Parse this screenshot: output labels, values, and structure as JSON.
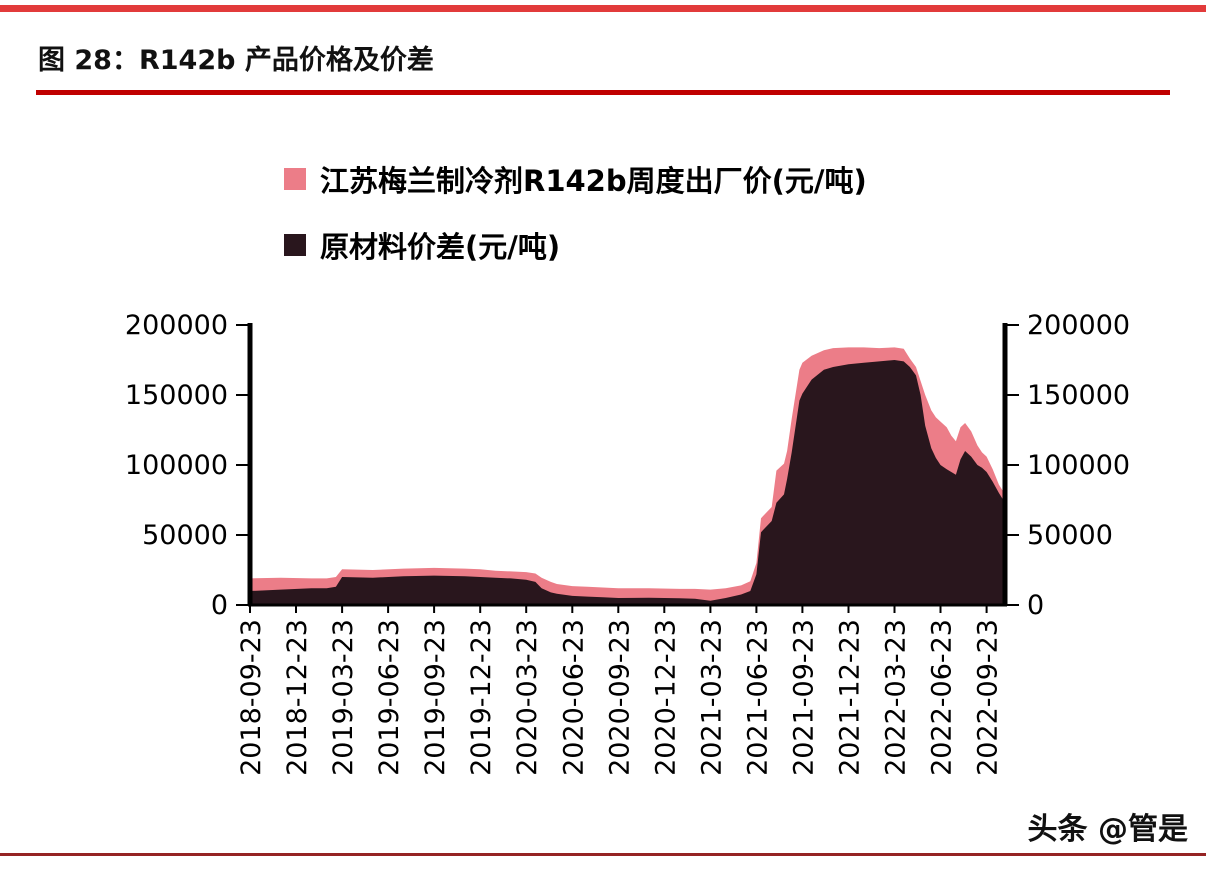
{
  "page": {
    "title": "图 28：R142b 产品价格及价差",
    "watermark": "头条 @管是"
  },
  "colors": {
    "top-bar": "#e23b3b",
    "underline": "#c00000",
    "bottom-line": "#952323",
    "axis": "#000000"
  },
  "legend": [
    {
      "label": "江苏梅兰制冷剂R142b周度出厂价(元/吨)",
      "color": "#ec7d88"
    },
    {
      "label": "原材料价差(元/吨)",
      "color": "#29161d"
    }
  ],
  "chart_data": {
    "type": "area",
    "title": "图 28：R142b 产品价格及价差",
    "xlabel": "",
    "ylabel": "元/吨",
    "x_unit": "months since 2018-09-23",
    "x_max": 49.2,
    "ylim": [
      0,
      200000
    ],
    "yticks": [
      0,
      50000,
      100000,
      150000,
      200000
    ],
    "grid": false,
    "legend_position": "top",
    "x_tick_months": [
      0,
      3,
      6,
      9,
      12,
      15,
      18,
      21,
      24,
      27,
      30,
      33,
      36,
      39,
      42,
      45,
      48
    ],
    "x_tick_labels": [
      "2018-09-23",
      "2018-12-23",
      "2019-03-23",
      "2019-06-23",
      "2019-09-23",
      "2019-12-23",
      "2020-03-23",
      "2020-06-23",
      "2020-09-23",
      "2020-12-23",
      "2021-03-23",
      "2021-06-23",
      "2021-09-23",
      "2021-12-23",
      "2022-03-23",
      "2022-06-23",
      "2022-09-23"
    ],
    "series": [
      {
        "id": "price",
        "name": "江苏梅兰制冷剂R142b周度出厂价(元/吨)",
        "color": "#ec7d88",
        "points": [
          [
            0,
            19000
          ],
          [
            2,
            19500
          ],
          [
            4,
            19000
          ],
          [
            5,
            19000
          ],
          [
            5.6,
            20000
          ],
          [
            6,
            25500
          ],
          [
            8,
            25000
          ],
          [
            10,
            26000
          ],
          [
            12,
            26500
          ],
          [
            14,
            26000
          ],
          [
            15,
            25500
          ],
          [
            16,
            24500
          ],
          [
            17,
            24000
          ],
          [
            18,
            23500
          ],
          [
            18.6,
            22500
          ],
          [
            19,
            19500
          ],
          [
            19.6,
            16500
          ],
          [
            20,
            15000
          ],
          [
            21,
            13500
          ],
          [
            22,
            13000
          ],
          [
            23,
            12500
          ],
          [
            24,
            12000
          ],
          [
            26,
            12000
          ],
          [
            28,
            11500
          ],
          [
            29,
            11500
          ],
          [
            30,
            11000
          ],
          [
            31,
            12000
          ],
          [
            32,
            14000
          ],
          [
            32.6,
            17000
          ],
          [
            33,
            30000
          ],
          [
            33.3,
            62000
          ],
          [
            34,
            70000
          ],
          [
            34.3,
            96000
          ],
          [
            34.8,
            101000
          ],
          [
            35,
            110000
          ],
          [
            35.3,
            133000
          ],
          [
            35.8,
            168000
          ],
          [
            36,
            173000
          ],
          [
            36.6,
            178000
          ],
          [
            37.4,
            182000
          ],
          [
            38,
            183500
          ],
          [
            39,
            184000
          ],
          [
            40,
            184000
          ],
          [
            41,
            183500
          ],
          [
            42,
            184000
          ],
          [
            42.6,
            183000
          ],
          [
            43,
            176000
          ],
          [
            43.4,
            170000
          ],
          [
            43.7,
            160000
          ],
          [
            44,
            150000
          ],
          [
            44.4,
            139000
          ],
          [
            44.7,
            134000
          ],
          [
            45,
            131000
          ],
          [
            45.4,
            127000
          ],
          [
            45.7,
            121000
          ],
          [
            46,
            117000
          ],
          [
            46.3,
            127000
          ],
          [
            46.6,
            130000
          ],
          [
            47,
            124000
          ],
          [
            47.4,
            114000
          ],
          [
            47.7,
            109000
          ],
          [
            48,
            106000
          ],
          [
            48.4,
            97000
          ],
          [
            48.8,
            86000
          ],
          [
            49.2,
            79000
          ]
        ]
      },
      {
        "id": "spread",
        "name": "原材料价差(元/吨)",
        "color": "#29161d",
        "points": [
          [
            0,
            10000
          ],
          [
            2,
            11000
          ],
          [
            4,
            12000
          ],
          [
            5,
            12000
          ],
          [
            5.6,
            13000
          ],
          [
            6,
            20000
          ],
          [
            8,
            19500
          ],
          [
            10,
            20500
          ],
          [
            12,
            21000
          ],
          [
            14,
            20500
          ],
          [
            15,
            20000
          ],
          [
            16,
            19500
          ],
          [
            17,
            19000
          ],
          [
            18,
            18000
          ],
          [
            18.6,
            16500
          ],
          [
            19,
            12000
          ],
          [
            19.6,
            9000
          ],
          [
            20,
            8000
          ],
          [
            21,
            6500
          ],
          [
            22,
            6000
          ],
          [
            23,
            5500
          ],
          [
            24,
            5000
          ],
          [
            26,
            5200
          ],
          [
            28,
            4800
          ],
          [
            29,
            4500
          ],
          [
            30,
            3000
          ],
          [
            31,
            5000
          ],
          [
            32,
            7500
          ],
          [
            32.6,
            10000
          ],
          [
            33,
            22000
          ],
          [
            33.3,
            52000
          ],
          [
            34,
            60000
          ],
          [
            34.3,
            73000
          ],
          [
            34.8,
            79000
          ],
          [
            35,
            90000
          ],
          [
            35.3,
            109000
          ],
          [
            35.8,
            146000
          ],
          [
            36,
            151000
          ],
          [
            36.6,
            161000
          ],
          [
            37.4,
            168000
          ],
          [
            38,
            170000
          ],
          [
            39,
            172000
          ],
          [
            40,
            173000
          ],
          [
            41,
            174000
          ],
          [
            42,
            175000
          ],
          [
            42.6,
            174000
          ],
          [
            43,
            170000
          ],
          [
            43.4,
            164000
          ],
          [
            43.7,
            150000
          ],
          [
            44,
            128000
          ],
          [
            44.4,
            112000
          ],
          [
            44.7,
            105000
          ],
          [
            45,
            100000
          ],
          [
            45.4,
            97000
          ],
          [
            45.7,
            95000
          ],
          [
            46,
            93000
          ],
          [
            46.3,
            104000
          ],
          [
            46.6,
            110000
          ],
          [
            47,
            106000
          ],
          [
            47.4,
            100000
          ],
          [
            47.7,
            98000
          ],
          [
            48,
            95000
          ],
          [
            48.4,
            88000
          ],
          [
            48.8,
            80000
          ],
          [
            49.2,
            73000
          ]
        ]
      }
    ]
  }
}
